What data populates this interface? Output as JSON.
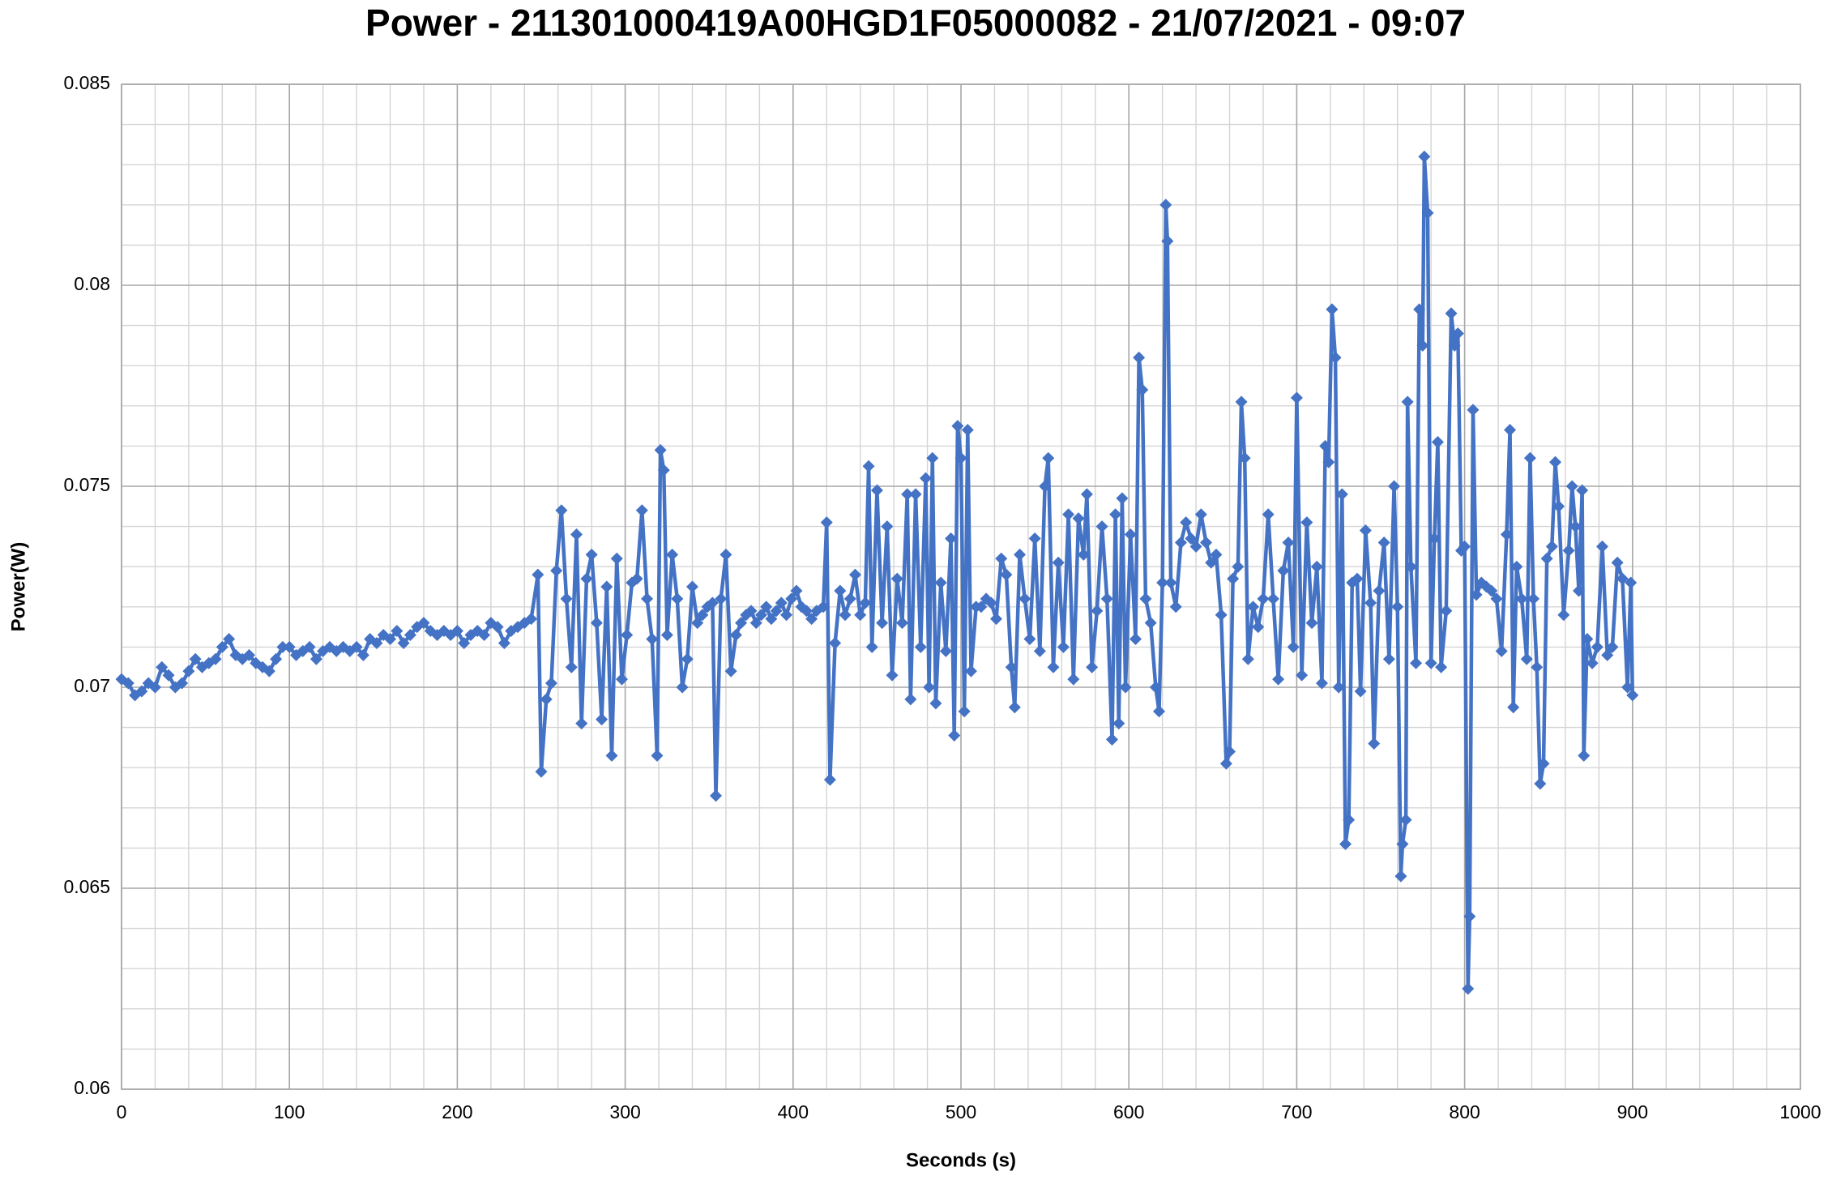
{
  "chart_data": {
    "type": "line",
    "title": "Power - 211301000419A00HGD1F05000082 - 21/07/2021 - 09:07",
    "xlabel": "Seconds (s)",
    "ylabel": "Power(W)",
    "xlim": [
      0,
      1000
    ],
    "xticks": [
      0,
      100,
      200,
      300,
      400,
      500,
      600,
      700,
      800,
      900,
      1000
    ],
    "ylim": [
      0.06,
      0.085
    ],
    "yticks": [
      0.06,
      0.065,
      0.07,
      0.075,
      0.08,
      0.085
    ],
    "grid": true,
    "minor_grid": true,
    "marker": "diamond",
    "series": [
      {
        "color": "#4472c4",
        "x": [
          0,
          4,
          8,
          12,
          16,
          20,
          24,
          28,
          32,
          36,
          40,
          44,
          48,
          52,
          56,
          60,
          64,
          68,
          72,
          76,
          80,
          84,
          88,
          92,
          96,
          100,
          104,
          108,
          112,
          116,
          120,
          124,
          128,
          132,
          136,
          140,
          144,
          148,
          152,
          156,
          160,
          164,
          168,
          172,
          176,
          180,
          184,
          188,
          192,
          196,
          200,
          204,
          208,
          212,
          216,
          220,
          224,
          228,
          232,
          236,
          240,
          244,
          248,
          250,
          253,
          256,
          259,
          262,
          265,
          268,
          271,
          274,
          277,
          280,
          283,
          286,
          289,
          292,
          295,
          298,
          301,
          304,
          307,
          310,
          313,
          316,
          319,
          321,
          323,
          325,
          328,
          331,
          334,
          337,
          340,
          343,
          346,
          349,
          352,
          354,
          357,
          360,
          363,
          366,
          369,
          372,
          375,
          378,
          381,
          384,
          387,
          390,
          393,
          396,
          399,
          402,
          405,
          408,
          411,
          414,
          418,
          420,
          422,
          425,
          428,
          431,
          434,
          437,
          440,
          443,
          445,
          447,
          450,
          453,
          456,
          459,
          462,
          465,
          468,
          470,
          473,
          476,
          479,
          481,
          483,
          485,
          488,
          491,
          494,
          496,
          498,
          500,
          502,
          504,
          506,
          509,
          512,
          515,
          518,
          521,
          524,
          527,
          530,
          532,
          535,
          538,
          541,
          544,
          547,
          550,
          552,
          555,
          558,
          561,
          564,
          567,
          570,
          573,
          575,
          578,
          581,
          584,
          587,
          590,
          592,
          594,
          596,
          598,
          601,
          604,
          606,
          608,
          610,
          613,
          616,
          618,
          620,
          622,
          623,
          625,
          628,
          631,
          634,
          637,
          640,
          643,
          646,
          649,
          652,
          655,
          658,
          660,
          662,
          665,
          667,
          669,
          671,
          674,
          677,
          680,
          683,
          686,
          689,
          692,
          695,
          698,
          700,
          703,
          706,
          709,
          712,
          715,
          717,
          719,
          721,
          723,
          725,
          727,
          729,
          731,
          733,
          736,
          738,
          741,
          744,
          746,
          749,
          752,
          755,
          758,
          760,
          762,
          763,
          765,
          766,
          768,
          771,
          773,
          775,
          776,
          778,
          780,
          782,
          784,
          786,
          789,
          792,
          794,
          796,
          798,
          800,
          802,
          803,
          805,
          807,
          810,
          813,
          816,
          819,
          822,
          825,
          827,
          829,
          831,
          834,
          837,
          839,
          841,
          843,
          845,
          847,
          849,
          852,
          854,
          856,
          859,
          862,
          864,
          866,
          868,
          870,
          871,
          873,
          876,
          879,
          882,
          885,
          888,
          891,
          894,
          897,
          899,
          900
        ],
        "values": [
          0.0702,
          0.0701,
          0.0698,
          0.0699,
          0.0701,
          0.07,
          0.0705,
          0.0703,
          0.07,
          0.0701,
          0.0704,
          0.0707,
          0.0705,
          0.0706,
          0.0707,
          0.071,
          0.0712,
          0.0708,
          0.0707,
          0.0708,
          0.0706,
          0.0705,
          0.0704,
          0.0707,
          0.071,
          0.071,
          0.0708,
          0.0709,
          0.071,
          0.0707,
          0.0709,
          0.071,
          0.0709,
          0.071,
          0.0709,
          0.071,
          0.0708,
          0.0712,
          0.0711,
          0.0713,
          0.0712,
          0.0714,
          0.0711,
          0.0713,
          0.0715,
          0.0716,
          0.0714,
          0.0713,
          0.0714,
          0.0713,
          0.0714,
          0.0711,
          0.0713,
          0.0714,
          0.0713,
          0.0716,
          0.0715,
          0.0711,
          0.0714,
          0.0715,
          0.0716,
          0.0717,
          0.0728,
          0.0679,
          0.0697,
          0.0701,
          0.0729,
          0.0744,
          0.0722,
          0.0705,
          0.0738,
          0.0691,
          0.0727,
          0.0733,
          0.0716,
          0.0692,
          0.0725,
          0.0683,
          0.0732,
          0.0702,
          0.0713,
          0.0726,
          0.0727,
          0.0744,
          0.0722,
          0.0712,
          0.0683,
          0.0759,
          0.0754,
          0.0713,
          0.0733,
          0.0722,
          0.07,
          0.0707,
          0.0725,
          0.0716,
          0.0718,
          0.072,
          0.0721,
          0.0673,
          0.0722,
          0.0733,
          0.0704,
          0.0713,
          0.0716,
          0.0718,
          0.0719,
          0.0716,
          0.0718,
          0.072,
          0.0717,
          0.0719,
          0.0721,
          0.0718,
          0.0722,
          0.0724,
          0.072,
          0.0719,
          0.0717,
          0.0719,
          0.072,
          0.0741,
          0.0677,
          0.0711,
          0.0724,
          0.0718,
          0.0722,
          0.0728,
          0.0718,
          0.0721,
          0.0755,
          0.071,
          0.0749,
          0.0716,
          0.074,
          0.0703,
          0.0727,
          0.0716,
          0.0748,
          0.0697,
          0.0748,
          0.071,
          0.0752,
          0.07,
          0.0757,
          0.0696,
          0.0726,
          0.0709,
          0.0737,
          0.0688,
          0.0765,
          0.0757,
          0.0694,
          0.0764,
          0.0704,
          0.072,
          0.072,
          0.0722,
          0.0721,
          0.0717,
          0.0732,
          0.0728,
          0.0705,
          0.0695,
          0.0733,
          0.0722,
          0.0712,
          0.0737,
          0.0709,
          0.075,
          0.0757,
          0.0705,
          0.0731,
          0.071,
          0.0743,
          0.0702,
          0.0742,
          0.0733,
          0.0748,
          0.0705,
          0.0719,
          0.074,
          0.0722,
          0.0687,
          0.0743,
          0.0691,
          0.0747,
          0.07,
          0.0738,
          0.0712,
          0.0782,
          0.0774,
          0.0722,
          0.0716,
          0.07,
          0.0694,
          0.0726,
          0.082,
          0.0811,
          0.0726,
          0.072,
          0.0736,
          0.0741,
          0.0737,
          0.0735,
          0.0743,
          0.0736,
          0.0731,
          0.0733,
          0.0718,
          0.0681,
          0.0684,
          0.0727,
          0.073,
          0.0771,
          0.0757,
          0.0707,
          0.072,
          0.0715,
          0.0722,
          0.0743,
          0.0722,
          0.0702,
          0.0729,
          0.0736,
          0.071,
          0.0772,
          0.0703,
          0.0741,
          0.0716,
          0.073,
          0.0701,
          0.076,
          0.0756,
          0.0794,
          0.0782,
          0.07,
          0.0748,
          0.0661,
          0.0667,
          0.0726,
          0.0727,
          0.0699,
          0.0739,
          0.0721,
          0.0686,
          0.0724,
          0.0736,
          0.0707,
          0.075,
          0.072,
          0.0653,
          0.0661,
          0.0667,
          0.0771,
          0.073,
          0.0706,
          0.0794,
          0.0785,
          0.0832,
          0.0818,
          0.0706,
          0.0737,
          0.0761,
          0.0705,
          0.0719,
          0.0793,
          0.0785,
          0.0788,
          0.0734,
          0.0735,
          0.0625,
          0.0643,
          0.0769,
          0.0723,
          0.0726,
          0.0725,
          0.0724,
          0.0722,
          0.0709,
          0.0738,
          0.0764,
          0.0695,
          0.073,
          0.0722,
          0.0707,
          0.0757,
          0.0722,
          0.0705,
          0.0676,
          0.0681,
          0.0732,
          0.0735,
          0.0756,
          0.0745,
          0.0718,
          0.0734,
          0.075,
          0.074,
          0.0724,
          0.0749,
          0.0683,
          0.0712,
          0.0706,
          0.071,
          0.0735,
          0.0708,
          0.071,
          0.0731,
          0.0727,
          0.07,
          0.0726,
          0.0698
        ]
      }
    ]
  }
}
